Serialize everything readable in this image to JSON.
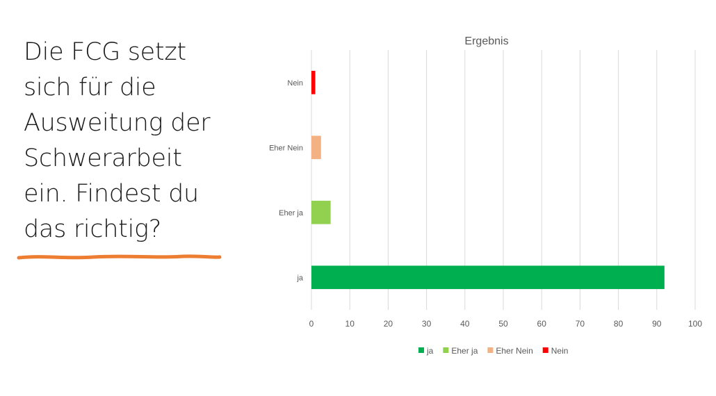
{
  "slide": {
    "lines": [
      "Die FCG setzt",
      "sich für die",
      "Ausweitung der",
      "Schwerarbeit",
      "ein. Findest du",
      "das richtig?"
    ],
    "underline_color": "#ED7D31"
  },
  "chart_data": {
    "type": "bar",
    "orientation": "horizontal",
    "title": "Ergebnis",
    "categories": [
      "ja",
      "Eher ja",
      "Eher Nein",
      "Nein"
    ],
    "values": [
      92,
      5,
      2.5,
      1
    ],
    "colors": [
      "#00B050",
      "#92D050",
      "#F4B183",
      "#FF0000"
    ],
    "xlim": [
      0,
      100
    ],
    "xticks": [
      0,
      10,
      20,
      30,
      40,
      50,
      60,
      70,
      80,
      90,
      100
    ],
    "grid": "vertical",
    "legend": {
      "position": "bottom",
      "entries": [
        "ja",
        "Eher ja",
        "Eher Nein",
        "Nein"
      ]
    }
  }
}
